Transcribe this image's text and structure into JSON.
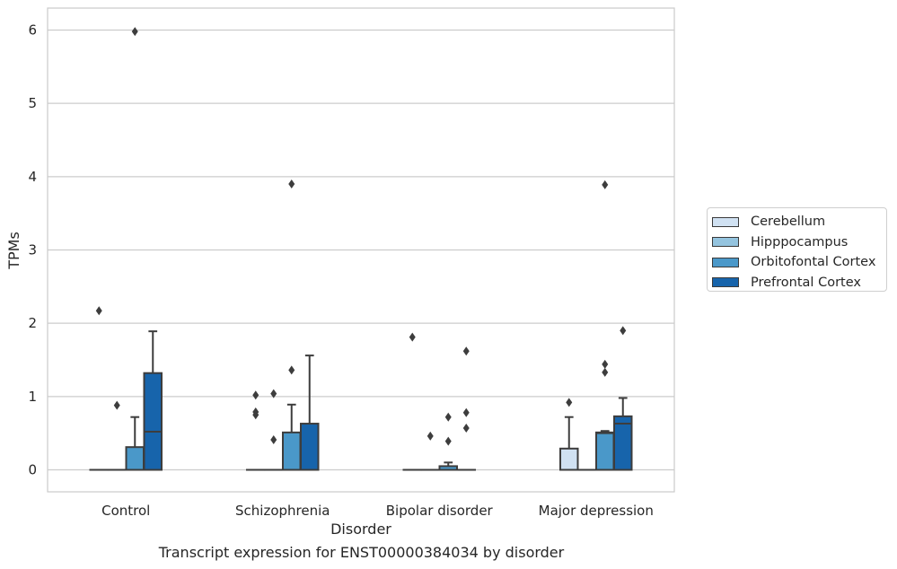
{
  "caption": "Transcript expression for ENST00000384034 by disorder",
  "legend": {
    "items": [
      {
        "label": "Cerebellum",
        "color": "#d0e1f2"
      },
      {
        "label": "Hipppocampus",
        "color": "#94c4df"
      },
      {
        "label": "Orbitofontal Cortex",
        "color": "#4a98c9"
      },
      {
        "label": "Prefrontal Cortex",
        "color": "#1764ab"
      }
    ]
  },
  "chart_data": {
    "type": "box",
    "xlabel": "Disorder",
    "ylabel": "TPMs",
    "ylim": [
      -0.3,
      6.3
    ],
    "yticks": [
      0,
      1,
      2,
      3,
      4,
      5,
      6
    ],
    "grid": "horizontal",
    "legend_position": "right",
    "categories": [
      "Control",
      "Schizophrenia",
      "Bipolar disorder",
      "Major depression"
    ],
    "series": [
      {
        "name": "Cerebellum",
        "color": "#d0e1f2",
        "boxes": [
          {
            "q1": 0,
            "median": 0,
            "q3": 0,
            "whisker_low": 0,
            "whisker_high": 0,
            "outliers": [
              2.17
            ]
          },
          {
            "q1": 0,
            "median": 0,
            "q3": 0,
            "whisker_low": 0,
            "whisker_high": 0,
            "outliers": [
              0.75,
              0.79,
              1.02
            ]
          },
          {
            "q1": 0,
            "median": 0,
            "q3": 0,
            "whisker_low": 0,
            "whisker_high": 0,
            "outliers": [
              1.81
            ]
          },
          {
            "q1": 0,
            "median": 0,
            "q3": 0.29,
            "whisker_low": 0,
            "whisker_high": 0.72,
            "outliers": [
              0.92
            ]
          }
        ]
      },
      {
        "name": "Hipppocampus",
        "color": "#94c4df",
        "boxes": [
          {
            "q1": 0,
            "median": 0,
            "q3": 0,
            "whisker_low": 0,
            "whisker_high": 0,
            "outliers": [
              0.88
            ]
          },
          {
            "q1": 0,
            "median": 0,
            "q3": 0,
            "whisker_low": 0,
            "whisker_high": 0,
            "outliers": [
              0.41,
              1.04
            ]
          },
          {
            "q1": 0,
            "median": 0,
            "q3": 0,
            "whisker_low": 0,
            "whisker_high": 0,
            "outliers": [
              0.46
            ]
          },
          {
            "q1": 0,
            "median": 0,
            "q3": 0,
            "whisker_low": 0,
            "whisker_high": 0,
            "outliers": []
          }
        ]
      },
      {
        "name": "Orbitofontal Cortex",
        "color": "#4a98c9",
        "boxes": [
          {
            "q1": 0,
            "median": 0,
            "q3": 0.31,
            "whisker_low": 0,
            "whisker_high": 0.72,
            "outliers": [
              5.98
            ]
          },
          {
            "q1": 0,
            "median": 0,
            "q3": 0.51,
            "whisker_low": 0,
            "whisker_high": 0.89,
            "outliers": [
              1.36,
              3.9
            ]
          },
          {
            "q1": 0,
            "median": 0,
            "q3": 0.05,
            "whisker_low": 0,
            "whisker_high": 0.1,
            "outliers": [
              0.39,
              0.72
            ]
          },
          {
            "q1": 0,
            "median": 0.5,
            "q3": 0.51,
            "whisker_low": 0,
            "whisker_high": 0.53,
            "outliers": [
              1.33,
              1.44,
              3.89
            ]
          }
        ]
      },
      {
        "name": "Prefrontal Cortex",
        "color": "#1764ab",
        "boxes": [
          {
            "q1": 0,
            "median": 0.52,
            "q3": 1.32,
            "whisker_low": 0,
            "whisker_high": 1.89,
            "outliers": []
          },
          {
            "q1": 0,
            "median": 0,
            "q3": 0.63,
            "whisker_low": 0,
            "whisker_high": 1.56,
            "outliers": []
          },
          {
            "q1": 0,
            "median": 0,
            "q3": 0,
            "whisker_low": 0,
            "whisker_high": 0,
            "outliers": [
              0.57,
              0.78,
              1.62
            ]
          },
          {
            "q1": 0,
            "median": 0.63,
            "q3": 0.73,
            "whisker_low": 0,
            "whisker_high": 0.98,
            "outliers": [
              1.9
            ]
          }
        ]
      }
    ]
  }
}
